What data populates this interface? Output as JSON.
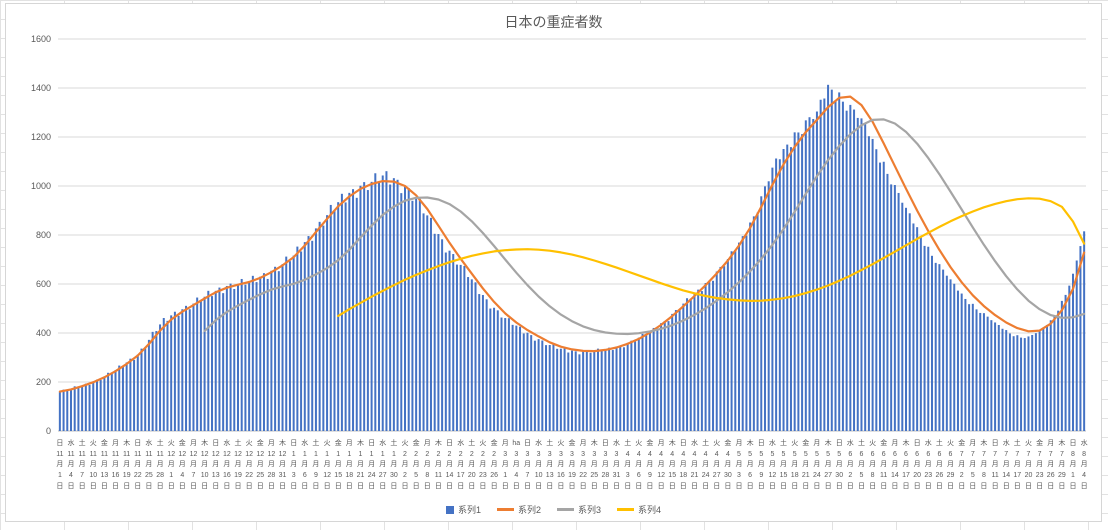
{
  "chart_data": {
    "type": "bar",
    "subtype": "combo-bar-line",
    "title": "日本の重症者数",
    "legend_position": "bottom",
    "grid": true,
    "y_axis": {
      "min": 0,
      "max": 1600,
      "step": 200,
      "tick_labels": [
        "0",
        "200",
        "400",
        "600",
        "800",
        "1000",
        "1200",
        "1400",
        "1600"
      ]
    },
    "x_axis": {
      "interval_days": 3,
      "unit_month": "月",
      "unit_day": "日"
    },
    "categories_format": [
      "day_of_week",
      "month",
      "day"
    ],
    "categories": [
      [
        "日",
        11,
        1
      ],
      [
        "水",
        11,
        4
      ],
      [
        "土",
        11,
        7
      ],
      [
        "火",
        11,
        10
      ],
      [
        "金",
        11,
        13
      ],
      [
        "月",
        11,
        16
      ],
      [
        "木",
        11,
        19
      ],
      [
        "日",
        11,
        22
      ],
      [
        "水",
        11,
        25
      ],
      [
        "土",
        11,
        28
      ],
      [
        "火",
        12,
        1
      ],
      [
        "金",
        12,
        4
      ],
      [
        "月",
        12,
        7
      ],
      [
        "木",
        12,
        10
      ],
      [
        "日",
        12,
        13
      ],
      [
        "水",
        12,
        16
      ],
      [
        "土",
        12,
        19
      ],
      [
        "火",
        12,
        22
      ],
      [
        "金",
        12,
        25
      ],
      [
        "月",
        12,
        28
      ],
      [
        "木",
        12,
        31
      ],
      [
        "日",
        1,
        3
      ],
      [
        "水",
        1,
        6
      ],
      [
        "土",
        1,
        9
      ],
      [
        "火",
        1,
        12
      ],
      [
        "金",
        1,
        15
      ],
      [
        "月",
        1,
        18
      ],
      [
        "木",
        1,
        21
      ],
      [
        "日",
        1,
        24
      ],
      [
        "水",
        1,
        27
      ],
      [
        "土",
        1,
        30
      ],
      [
        "火",
        2,
        2
      ],
      [
        "金",
        2,
        5
      ],
      [
        "月",
        2,
        8
      ],
      [
        "木",
        2,
        11
      ],
      [
        "日",
        2,
        14
      ],
      [
        "水",
        2,
        17
      ],
      [
        "土",
        2,
        20
      ],
      [
        "火",
        2,
        23
      ],
      [
        "金",
        2,
        26
      ],
      [
        "月",
        3,
        1
      ],
      [
        "ha",
        3,
        4
      ],
      [
        "日",
        3,
        7
      ],
      [
        "水",
        3,
        10
      ],
      [
        "土",
        3,
        13
      ],
      [
        "火",
        3,
        16
      ],
      [
        "金",
        3,
        19
      ],
      [
        "月",
        3,
        22
      ],
      [
        "木",
        3,
        25
      ],
      [
        "日",
        3,
        28
      ],
      [
        "水",
        3,
        31
      ],
      [
        "土",
        4,
        3
      ],
      [
        "火",
        4,
        6
      ],
      [
        "金",
        4,
        9
      ],
      [
        "月",
        4,
        12
      ],
      [
        "木",
        4,
        15
      ],
      [
        "日",
        4,
        18
      ],
      [
        "水",
        4,
        21
      ],
      [
        "土",
        4,
        24
      ],
      [
        "火",
        4,
        27
      ],
      [
        "金",
        4,
        30
      ],
      [
        "月",
        5,
        3
      ],
      [
        "木",
        5,
        6
      ],
      [
        "日",
        5,
        9
      ],
      [
        "水",
        5,
        12
      ],
      [
        "土",
        5,
        15
      ],
      [
        "火",
        5,
        18
      ],
      [
        "金",
        5,
        21
      ],
      [
        "月",
        5,
        24
      ],
      [
        "木",
        5,
        27
      ],
      [
        "日",
        5,
        30
      ],
      [
        "水",
        6,
        2
      ],
      [
        "土",
        6,
        5
      ],
      [
        "火",
        6,
        8
      ],
      [
        "金",
        6,
        11
      ],
      [
        "月",
        6,
        14
      ],
      [
        "木",
        6,
        17
      ],
      [
        "日",
        6,
        20
      ],
      [
        "水",
        6,
        23
      ],
      [
        "土",
        6,
        26
      ],
      [
        "火",
        6,
        29
      ],
      [
        "金",
        7,
        2
      ],
      [
        "月",
        7,
        5
      ],
      [
        "木",
        7,
        8
      ],
      [
        "日",
        7,
        11
      ],
      [
        "水",
        7,
        14
      ],
      [
        "土",
        7,
        17
      ],
      [
        "火",
        7,
        20
      ],
      [
        "金",
        7,
        23
      ],
      [
        "月",
        7,
        26
      ],
      [
        "木",
        7,
        29
      ],
      [
        "日",
        8,
        1
      ],
      [
        "水",
        8,
        4
      ]
    ],
    "series": [
      {
        "name": "系列1",
        "type": "bar",
        "color": "#4472C4",
        "values": [
          160,
          172,
          185,
          200,
          222,
          248,
          280,
          312,
          372,
          435,
          472,
          497,
          520,
          548,
          572,
          592,
          600,
          610,
          630,
          654,
          681,
          716,
          771,
          827,
          881,
          934,
          972,
          1001,
          1017,
          1043,
          1032,
          1001,
          948,
          880,
          804,
          736,
          678,
          619,
          555,
          503,
          461,
          430,
          401,
          375,
          351,
          336,
          328,
          324,
          328,
          334,
          345,
          360,
          381,
          408,
          440,
          478,
          520,
          562,
          604,
          651,
          702,
          769,
          851,
          958,
          1075,
          1151,
          1219,
          1268,
          1304,
          1413,
          1382,
          1331,
          1276,
          1192,
          1099,
          1004,
          911,
          832,
          752,
          681,
          619,
          561,
          519,
          481,
          443,
          412,
          391,
          386,
          409,
          452,
          531,
          642,
          815
        ]
      },
      {
        "name": "系列2",
        "type": "line",
        "color": "#ED7D31",
        "values": [
          161,
          170,
          183,
          199,
          219,
          244,
          274,
          308,
          355,
          410,
          455,
          487,
          514,
          541,
          566,
          585,
          597,
          608,
          625,
          648,
          676,
          710,
          757,
          812,
          866,
          917,
          957,
          988,
          1008,
          1020,
          1018,
          1000,
          962,
          906,
          838,
          768,
          703,
          642,
          582,
          527,
          480,
          443,
          412,
          386,
          362,
          344,
          333,
          327,
          326,
          331,
          341,
          356,
          376,
          402,
          433,
          469,
          509,
          551,
          595,
          643,
          696,
          757,
          829,
          915,
          1005,
          1088,
          1160,
          1220,
          1270,
          1322,
          1360,
          1365,
          1330,
          1262,
          1174,
          1081,
          989,
          900,
          816,
          739,
          669,
          607,
          554,
          510,
          473,
          443,
          420,
          407,
          410,
          438,
          493,
          580,
          728
        ]
      },
      {
        "name": "系列3",
        "type": "line",
        "color": "#A5A5A5",
        "values": [
          null,
          null,
          null,
          null,
          null,
          null,
          null,
          null,
          null,
          null,
          null,
          null,
          null,
          408,
          452,
          486,
          512,
          536,
          558,
          577,
          590,
          601,
          617,
          639,
          665,
          697,
          740,
          790,
          838,
          882,
          916,
          940,
          952,
          953,
          945,
          926,
          896,
          856,
          808,
          755,
          700,
          646,
          595,
          549,
          509,
          475,
          448,
          427,
          412,
          402,
          397,
          396,
          399,
          406,
          417,
          432,
          451,
          474,
          501,
          532,
          567,
          607,
          652,
          703,
          760,
          824,
          895,
          968,
          1040,
          1106,
          1163,
          1211,
          1248,
          1270,
          1272,
          1255,
          1221,
          1173,
          1114,
          1048,
          977,
          904,
          831,
          760,
          693,
          632,
          578,
          532,
          497,
          473,
          462,
          464,
          478
        ]
      },
      {
        "name": "系列4",
        "type": "line",
        "color": "#FFC000",
        "values": [
          null,
          null,
          null,
          null,
          null,
          null,
          null,
          null,
          null,
          null,
          null,
          null,
          null,
          null,
          null,
          null,
          null,
          null,
          null,
          null,
          null,
          null,
          null,
          null,
          null,
          470,
          497,
          523,
          548,
          572,
          595,
          617,
          637,
          656,
          673,
          689,
          703,
          715,
          725,
          733,
          738,
          741,
          742,
          740,
          736,
          729,
          720,
          709,
          696,
          682,
          667,
          651,
          635,
          619,
          603,
          588,
          574,
          562,
          551,
          543,
          537,
          533,
          531,
          532,
          536,
          542,
          551,
          563,
          577,
          594,
          613,
          634,
          657,
          681,
          706,
          732,
          758,
          784,
          809,
          833,
          856,
          877,
          896,
          913,
          927,
          938,
          946,
          950,
          948,
          938,
          915,
          855,
          765
        ]
      }
    ]
  },
  "style": {
    "grid_color": "#d9d9d9",
    "axis_color": "#bfbfbf",
    "label_color": "#595959"
  }
}
